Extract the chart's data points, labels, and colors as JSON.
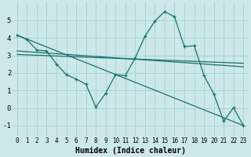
{
  "xlabel": "Humidex (Indice chaleur)",
  "bg_color": "#cce8e8",
  "line_color": "#1a7070",
  "grid_color": "#aad4d4",
  "xlim": [
    -0.5,
    23.5
  ],
  "ylim": [
    -1.6,
    6.0
  ],
  "yticks": [
    -1,
    0,
    1,
    2,
    3,
    4,
    5
  ],
  "xticks": [
    0,
    1,
    2,
    3,
    4,
    5,
    6,
    7,
    8,
    9,
    10,
    11,
    12,
    13,
    14,
    15,
    16,
    17,
    18,
    19,
    20,
    21,
    22,
    23
  ],
  "main_line": {
    "x": [
      0,
      1,
      2,
      3,
      4,
      5,
      6,
      7,
      8,
      9,
      10,
      11,
      12,
      13,
      14,
      15,
      16,
      17,
      18,
      19,
      20,
      21,
      22,
      23
    ],
    "y": [
      4.15,
      3.9,
      3.3,
      3.25,
      2.5,
      1.9,
      1.65,
      1.35,
      0.05,
      0.85,
      1.9,
      1.85,
      2.85,
      4.1,
      4.95,
      5.5,
      5.2,
      3.5,
      3.55,
      1.85,
      0.8,
      -0.75,
      0.02,
      -1.0
    ]
  },
  "straight_lines": [
    {
      "x": [
        0,
        23
      ],
      "y": [
        4.15,
        -1.0
      ]
    },
    {
      "x": [
        0,
        23
      ],
      "y": [
        3.25,
        2.35
      ]
    },
    {
      "x": [
        0,
        23
      ],
      "y": [
        3.05,
        2.55
      ]
    }
  ]
}
